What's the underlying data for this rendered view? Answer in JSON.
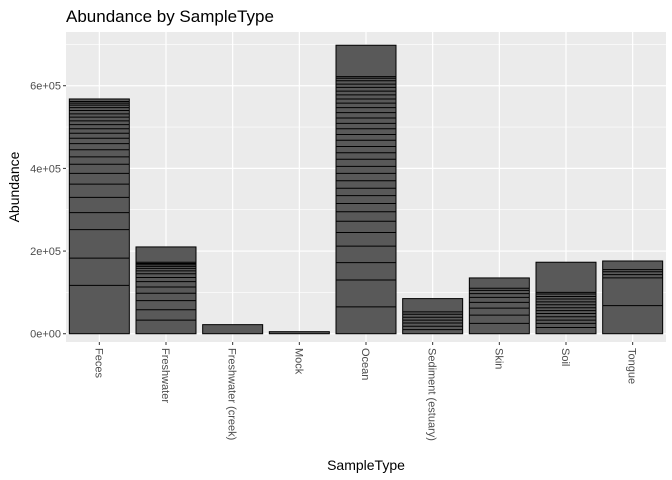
{
  "chart_data": {
    "type": "bar",
    "title": "Abundance by SampleType",
    "xlabel": "SampleType",
    "ylabel": "Abundance",
    "ylim": [
      -20000,
      730000
    ],
    "yticks": [
      {
        "value": 0,
        "label": "0e+00"
      },
      {
        "value": 200000,
        "label": "2e+05"
      },
      {
        "value": 400000,
        "label": "4e+05"
      },
      {
        "value": 600000,
        "label": "6e+05"
      }
    ],
    "grid": true,
    "legend": "none",
    "colors": {
      "bar_fill": "#595959",
      "bar_outline": "#000000",
      "panel": "#ebebeb",
      "grid": "#ffffff"
    },
    "categories": [
      "Feces",
      "Freshwater",
      "Freshwater (creek)",
      "Mock",
      "Ocean",
      "Sediment (estuary)",
      "Skin",
      "Soil",
      "Tongue"
    ],
    "values": [
      568000,
      210000,
      22000,
      5000,
      698000,
      85000,
      135000,
      173000,
      176000
    ],
    "segment_boundaries": [
      [
        117000,
        183000,
        252000,
        293000,
        330000,
        362000,
        388000,
        410000,
        428000,
        445000,
        460000,
        473000,
        485000,
        496000,
        506000,
        515000,
        524000,
        532000,
        540000,
        547000,
        553000,
        558000,
        562000
      ],
      [
        33000,
        58000,
        80000,
        98000,
        113000,
        126000,
        136000,
        145000,
        152000,
        158000,
        163000,
        167000,
        170000,
        173000
      ],
      [],
      [],
      [
        65000,
        130000,
        172000,
        212000,
        245000,
        272000,
        295000,
        315000,
        334000,
        352000,
        370000,
        388000,
        405000,
        422000,
        438000,
        453000,
        468000,
        482000,
        496000,
        509000,
        522000,
        535000,
        547000,
        558000,
        568000,
        578000,
        587000,
        596000,
        604000,
        612000,
        618000,
        622000
      ],
      [
        10000,
        18000,
        26000,
        33000,
        40000,
        47000,
        53000
      ],
      [
        25000,
        45000,
        62000,
        76000,
        88000,
        97000,
        105000,
        110000
      ],
      [
        15000,
        25000,
        33000,
        41000,
        49000,
        56000,
        63000,
        70000,
        77000,
        84000,
        90000,
        96000,
        100000
      ],
      [
        68000,
        135000,
        143000,
        150000,
        155000
      ]
    ]
  }
}
